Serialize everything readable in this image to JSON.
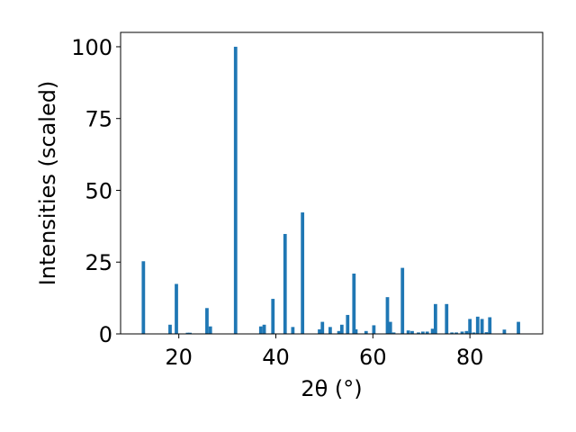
{
  "chart_data": {
    "type": "bar",
    "xlabel": "2θ (°)",
    "ylabel": "Intensities (scaled)",
    "xlim": [
      8,
      95
    ],
    "ylim": [
      0,
      105
    ],
    "xticks": [
      20,
      40,
      60,
      80
    ],
    "yticks": [
      0,
      25,
      50,
      75,
      100
    ],
    "xtick_labels": [
      "20",
      "40",
      "60",
      "80"
    ],
    "ytick_labels": [
      "0",
      "25",
      "50",
      "75",
      "100"
    ],
    "bar_color": "#1f77b4",
    "bar_width": 0.7,
    "grid": false,
    "series": [
      {
        "x": [
          12.7,
          18.2,
          19.5,
          21.8,
          22.3,
          25.8,
          26.5,
          31.7,
          36.9,
          37.6,
          39.4,
          41.9,
          43.5,
          45.5,
          49.0,
          49.6,
          51.2,
          53.0,
          53.6,
          54.8,
          56.1,
          56.5,
          58.6,
          60.2,
          63.0,
          63.6,
          64.3,
          66.1,
          67.3,
          68.1,
          69.4,
          70.3,
          71.2,
          72.3,
          72.9,
          75.2,
          76.3,
          77.2,
          78.4,
          79.3,
          80.0,
          80.8,
          81.6,
          82.5,
          83.4,
          84.1,
          87.1,
          90.0
        ],
        "values": [
          25.3,
          3.2,
          17.4,
          0.4,
          0.4,
          9.0,
          2.6,
          100.0,
          2.6,
          3.2,
          12.2,
          34.8,
          2.4,
          42.3,
          1.6,
          4.2,
          2.4,
          1.0,
          3.2,
          6.6,
          21.0,
          1.6,
          1.0,
          3.0,
          12.8,
          4.2,
          0.5,
          23.0,
          1.2,
          1.0,
          0.5,
          0.8,
          0.8,
          1.8,
          10.4,
          10.4,
          0.5,
          0.5,
          0.8,
          1.0,
          5.2,
          0.5,
          6.0,
          5.2,
          0.6,
          5.8,
          1.5,
          4.2
        ]
      }
    ]
  }
}
